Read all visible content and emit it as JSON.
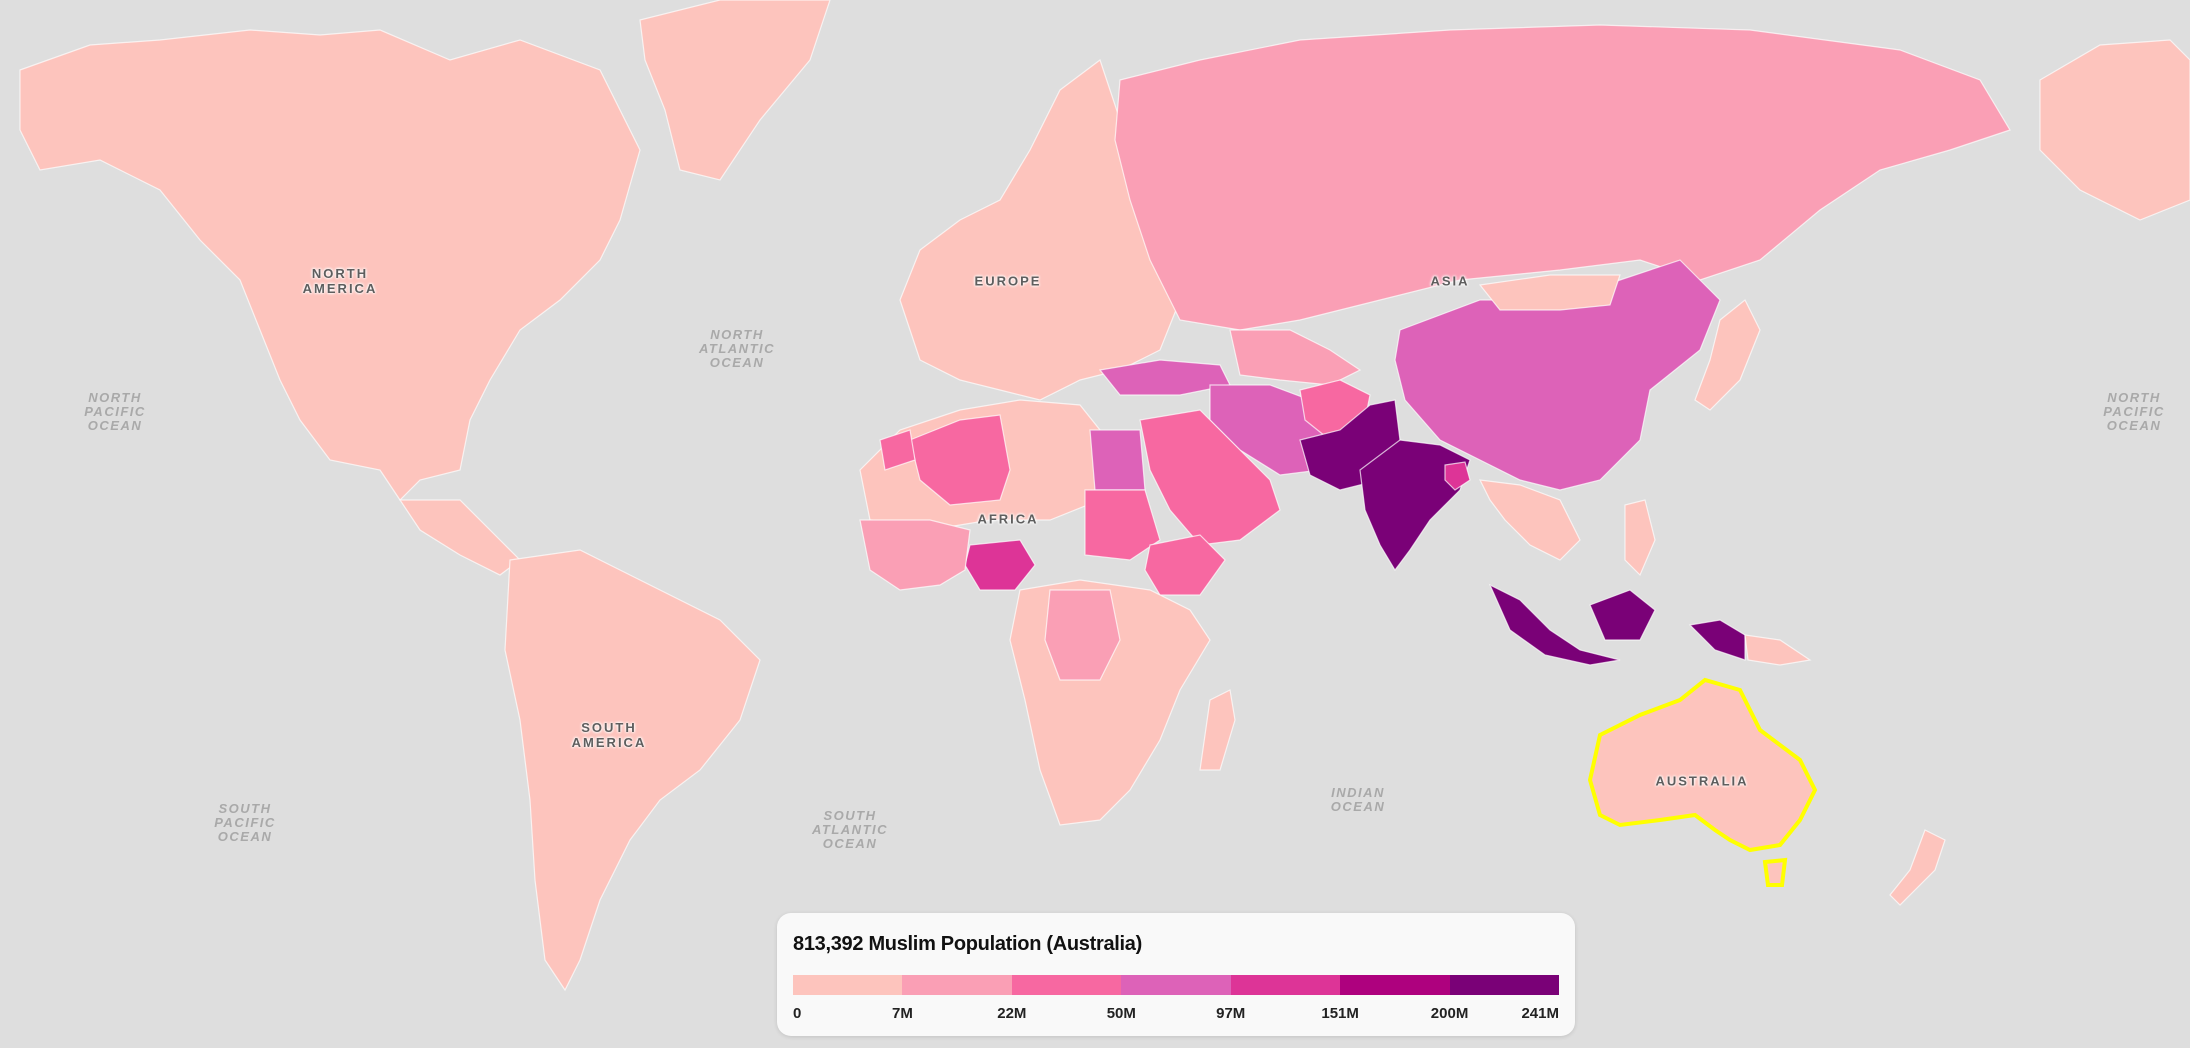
{
  "region_labels": {
    "north_america": "NORTH\nAMERICA",
    "south_america": "SOUTH\nAMERICA",
    "europe": "EUROPE",
    "africa": "AFRICA",
    "asia": "ASIA",
    "australia": "AUSTRALIA"
  },
  "ocean_labels": {
    "north_pacific_left": "NORTH\nPACIFIC\nOCEAN",
    "north_pacific_right": "NORTH\nPACIFIC\nOCEAN",
    "north_atlantic": "NORTH\nATLANTIC\nOCEAN",
    "south_pacific": "SOUTH\nPACIFIC\nOCEAN",
    "south_atlantic": "SOUTH\nATLANTIC\nOCEAN",
    "indian": "INDIAN\nOCEAN"
  },
  "legend": {
    "title": "813,392 Muslim Population (Australia)",
    "colors": [
      "#fdc4bd",
      "#fa9fb5",
      "#f768a1",
      "#dd62b8",
      "#dd3497",
      "#ae017e",
      "#7a0177"
    ],
    "ticks": [
      "0",
      "7M",
      "22M",
      "50M",
      "97M",
      "151M",
      "200M",
      "241M"
    ]
  },
  "colors": {
    "ocean": "#dedede",
    "selected_outline": "#ffff00"
  },
  "selected_country": "Australia"
}
